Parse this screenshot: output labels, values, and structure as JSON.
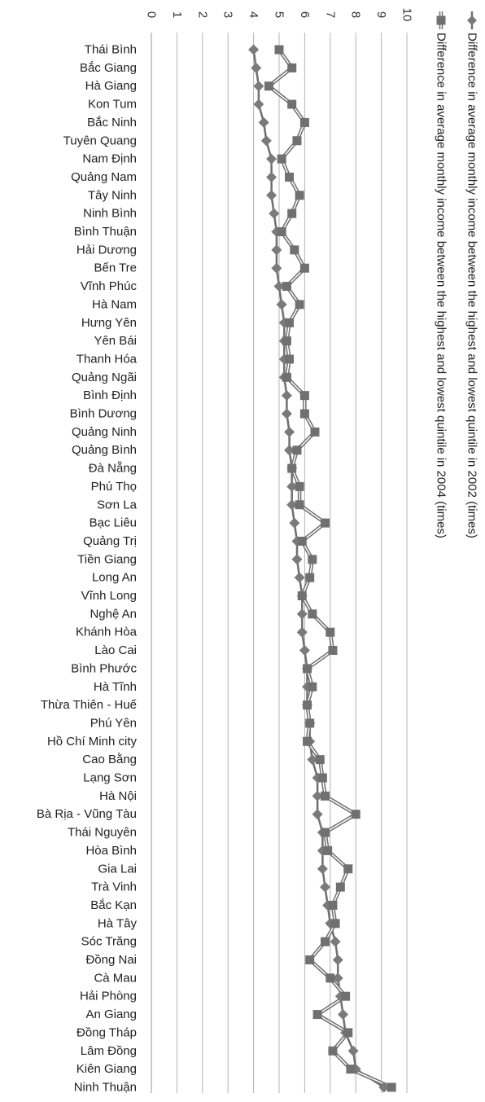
{
  "chart_data": {
    "type": "line",
    "orientation": "horizontal-values, categories listed top to bottom",
    "value_axis": {
      "min": 0,
      "max": 10,
      "ticks": [
        "0",
        "1",
        "2",
        "3",
        "4",
        "5",
        "6",
        "7",
        "8",
        "9",
        "10"
      ],
      "position": "top"
    },
    "grid": true,
    "legend": {
      "placement": "right"
    },
    "categories": [
      "Thái Bình",
      "Bắc Giang",
      "Hà Giang",
      "Kon Tum",
      "Bắc Ninh",
      "Tuyên Quang",
      "Nam Định",
      "Quảng Nam",
      "Tây Ninh",
      "Ninh Bình",
      "Bình Thuận",
      "Hải Dương",
      "Bến Tre",
      "Vĩnh Phúc",
      "Hà Nam",
      "Hưng Yên",
      "Yên Bái",
      "Thanh Hóa",
      "Quảng Ngãi",
      "Bình Định",
      "Bình Dương",
      "Quảng Ninh",
      "Quảng Bình",
      "Đà Nẵng",
      "Phú Thọ",
      "Sơn La",
      "Bạc Liêu",
      "Quảng Trị",
      "Tiền Giang",
      "Long An",
      "Vĩnh Long",
      "Nghệ An",
      "Khánh Hòa",
      "Lào Cai",
      "Bình Phước",
      "Hà Tĩnh",
      "Thừa Thiên - Huế",
      "Phú Yên",
      "Hồ Chí Minh city",
      "Cao Bằng",
      "Lạng Sơn",
      "Hà Nội",
      "Bà Rịa - Vũng Tàu",
      "Thái Nguyên",
      "Hòa Bình",
      "Gia Lai",
      "Trà Vinh",
      "Bắc Kạn",
      "Hà Tây",
      "Sóc Trăng",
      "Đồng Nai",
      "Cà Mau",
      "Hải Phòng",
      "An Giang",
      "Đồng Tháp",
      "Lâm Đồng",
      "Kiên Giang",
      "Ninh Thuận"
    ],
    "series": [
      {
        "name": "Difference in average monthly income between the highest and lowest quintile in 2002 (times)",
        "marker": "diamond",
        "color": "#6f6f6f",
        "values": [
          4.0,
          4.1,
          4.2,
          4.2,
          4.4,
          4.5,
          4.7,
          4.7,
          4.7,
          4.8,
          4.9,
          4.9,
          4.9,
          5.0,
          5.1,
          5.2,
          5.2,
          5.2,
          5.2,
          5.3,
          5.3,
          5.4,
          5.4,
          5.5,
          5.5,
          5.5,
          5.6,
          5.7,
          5.7,
          5.8,
          5.9,
          5.9,
          5.9,
          6.0,
          6.1,
          6.1,
          6.1,
          6.2,
          6.2,
          6.3,
          6.5,
          6.5,
          6.5,
          6.7,
          6.7,
          6.7,
          6.8,
          6.9,
          7.0,
          7.2,
          7.3,
          7.3,
          7.4,
          7.5,
          7.6,
          7.9,
          8.0,
          9.1
        ]
      },
      {
        "name": "Difference in average monthly income between the highest and lowest quintile in 2004 (times)",
        "marker": "square",
        "color": "#6f6f6f",
        "values": [
          5.0,
          5.5,
          4.6,
          5.5,
          6.0,
          5.7,
          5.1,
          5.4,
          5.8,
          5.5,
          5.1,
          5.6,
          6.0,
          5.3,
          5.8,
          5.4,
          5.3,
          5.4,
          5.3,
          6.0,
          6.0,
          6.4,
          5.7,
          5.5,
          5.8,
          5.8,
          6.8,
          5.9,
          6.3,
          6.2,
          5.9,
          6.3,
          7.0,
          7.1,
          6.1,
          6.3,
          6.1,
          6.2,
          6.1,
          6.6,
          6.7,
          6.8,
          8.0,
          6.8,
          6.9,
          7.7,
          7.4,
          7.1,
          7.2,
          6.8,
          6.2,
          7.0,
          7.6,
          6.5,
          7.7,
          7.1,
          7.8,
          9.4
        ]
      }
    ]
  }
}
